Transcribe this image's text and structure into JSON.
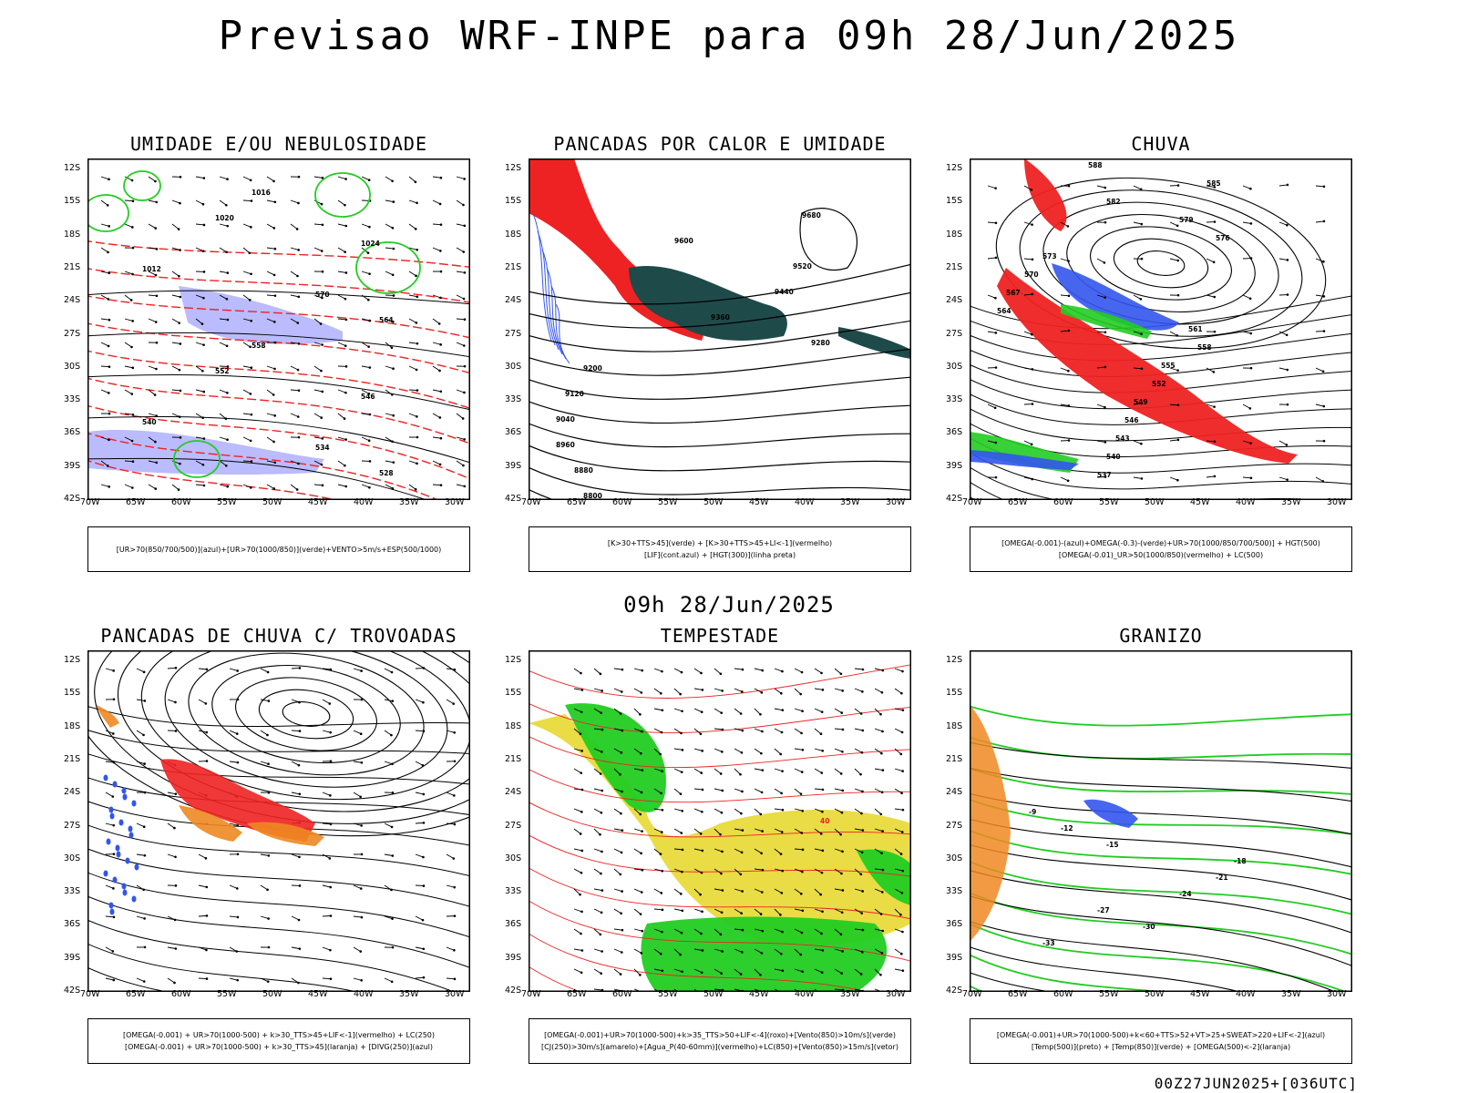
{
  "title": "Previsao WRF-INPE  para 09h 28/Jun/2025",
  "mid_title": "09h 28/Jun/2025",
  "footer": "00Z27JUN2025+[036UTC]",
  "axes": {
    "lat_labels": [
      "12S",
      "15S",
      "18S",
      "21S",
      "24S",
      "27S",
      "30S",
      "33S",
      "36S",
      "39S",
      "42S"
    ],
    "lon_labels": [
      "70W",
      "65W",
      "60W",
      "55W",
      "50W",
      "45W",
      "40W",
      "35W",
      "30W"
    ]
  },
  "colors": {
    "blue": "#3355ee",
    "green": "#22cc22",
    "red": "#ee2222",
    "light_blue": "#aaaaff",
    "dark_teal": "#1f4a4a",
    "yellow": "#e8d830",
    "orange": "#ee8822",
    "black": "#000000"
  },
  "panels": [
    {
      "title": "UMIDADE E/OU NEBULOSIDADE",
      "legend": [
        "[UR>70(850/700/500)](azul)+[UR>70(1000/850)](verde)+VENTO>5m/s+ESP(500/1000)"
      ],
      "contour_labels": [
        "1016",
        "1020",
        "1024",
        "1012",
        "570",
        "564",
        "558",
        "552",
        "546",
        "540",
        "534",
        "528"
      ]
    },
    {
      "title": "PANCADAS POR CALOR E UMIDADE",
      "legend": [
        "[K>30+TTS>45](verde) + [K>30+TTS>45+LI<-1](vermelho)",
        "[LIF](cont.azul) + [HGT(300)](linha preta)"
      ],
      "contour_labels": [
        "9680",
        "9600",
        "9520",
        "9440",
        "9360",
        "9280",
        "9200",
        "9120",
        "9040",
        "8960",
        "8880",
        "8800"
      ]
    },
    {
      "title": "CHUVA",
      "legend": [
        "[OMEGA(-0.001)-(azul)+OMEGA(-0.3)-(verde)+UR>70(1000/850/700/500)] + HGT(500)",
        "[OMEGA(-0.01)_UR>50(1000/850)(vermelho) + LC(500)"
      ],
      "contour_labels": [
        "588",
        "585",
        "582",
        "579",
        "576",
        "573",
        "570",
        "567",
        "564",
        "561",
        "558",
        "555",
        "552",
        "549",
        "546",
        "543",
        "540",
        "537"
      ]
    },
    {
      "title": "PANCADAS DE CHUVA C/ TROVOADAS",
      "legend": [
        "[OMEGA(-0.001) + UR>70(1000-500) + k>30_TTS>45+LIF<-1](vermelho) + LC(250)",
        "[OMEGA(-0.001) + UR>70(1000-500) + k>30_TTS>45](laranja) + [DIVG(250)](azul)"
      ],
      "contour_labels": []
    },
    {
      "title": "TEMPESTADE",
      "legend": [
        "[OMEGA(-0.001)+UR>70(1000-500)+k>35_TTS>50+LIF<-4](roxo)+[Vento(850)>10m/s](verde)",
        "[CJ(250)>30m/s](amarelo)+[Agua_P(40-60mm)](vermelho)+LC(850)+[Vento(850)>15m/s](vetor)"
      ],
      "contour_labels": [
        "40"
      ]
    },
    {
      "title": "GRANIZO",
      "legend": [
        "[OMEGA(-0.001)+UR>70(1000-500)+k<60+TTS>52+VT>25+SWEAT>220+LIF<-2](azul)",
        "[Temp(500)](preto) + [Temp(850)](verde) + [OMEGA(500)<-2](laranja)"
      ],
      "contour_labels": [
        "-9",
        "-12",
        "-15",
        "-18",
        "-21",
        "-24",
        "-27",
        "-30",
        "-33"
      ]
    }
  ]
}
